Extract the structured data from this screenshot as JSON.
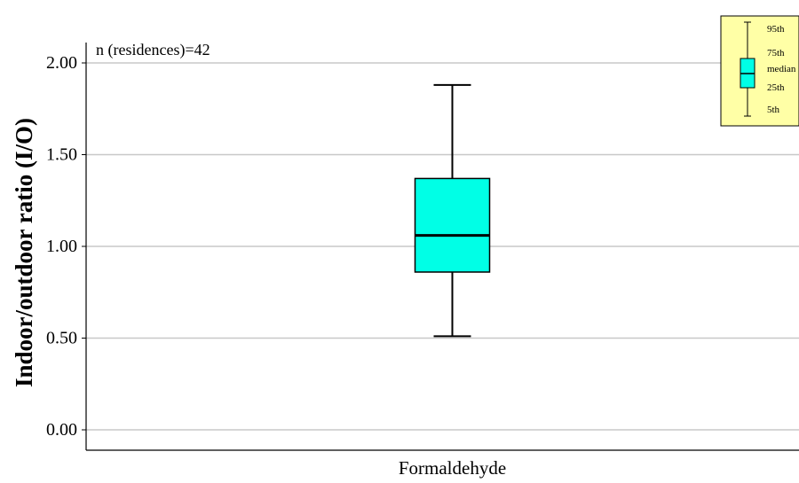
{
  "chart_data": {
    "type": "boxplot",
    "ylabel": "Indoor/outdoor ratio (I/O)",
    "xlabel": "",
    "categories": [
      "Formaldehyde"
    ],
    "ylim": [
      0.0,
      2.0
    ],
    "yticks": [
      0.0,
      0.5,
      1.0,
      1.5,
      2.0
    ],
    "ytick_labels": [
      "0.00",
      "0.50",
      "1.00",
      "1.50",
      "2.00"
    ],
    "grid": "horizontal",
    "annotation": "n (residences)=42",
    "boxes": [
      {
        "category": "Formaldehyde",
        "p5": 0.51,
        "p25": 0.86,
        "median": 1.06,
        "p75": 1.37,
        "p95": 1.88,
        "color": "#00ffe6"
      }
    ],
    "legend": {
      "placement": "top-right",
      "background": "#ffffa6",
      "labels": {
        "p95": "95th",
        "p75": "75th",
        "median": "median",
        "p25": "25th",
        "p5": "5th"
      }
    }
  }
}
